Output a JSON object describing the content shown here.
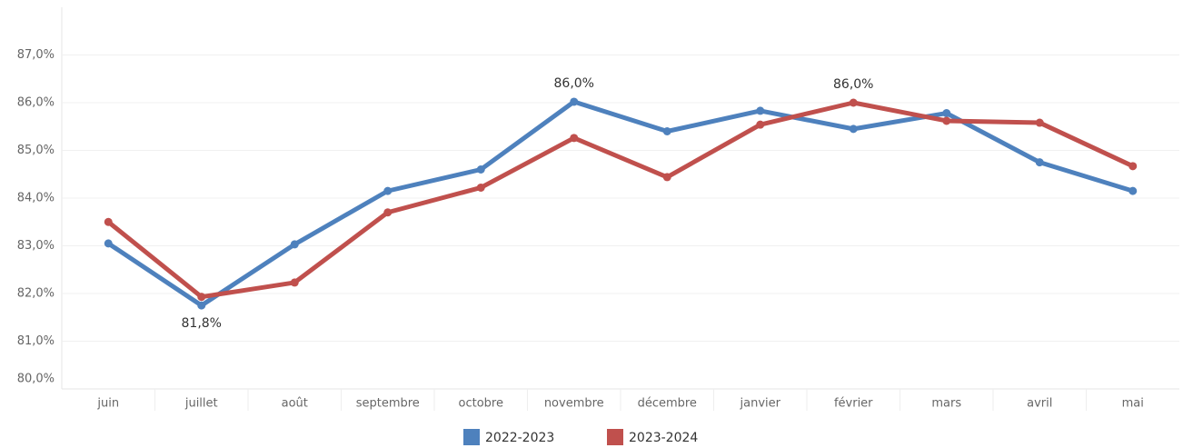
{
  "chart_data": {
    "type": "line",
    "categories": [
      "juin",
      "juillet",
      "août",
      "septembre",
      "octobre",
      "novembre",
      "décembre",
      "janvier",
      "février",
      "mars",
      "avril",
      "mai"
    ],
    "series": [
      {
        "name": "2022-2023",
        "color": "#4e81bd",
        "values": [
          83.05,
          81.75,
          83.03,
          84.15,
          84.6,
          86.02,
          85.4,
          85.83,
          85.45,
          85.78,
          84.75,
          84.15
        ],
        "value_labels": [
          null,
          "81,8%",
          null,
          null,
          null,
          "86,0%",
          null,
          null,
          null,
          null,
          null,
          null
        ]
      },
      {
        "name": "2023-2024",
        "color": "#c0504d",
        "values": [
          83.5,
          81.93,
          82.23,
          83.7,
          84.22,
          85.26,
          84.44,
          85.54,
          86.0,
          85.62,
          85.58,
          84.67
        ],
        "value_labels": [
          null,
          null,
          null,
          null,
          null,
          null,
          null,
          null,
          "86,0%",
          null,
          null,
          null
        ]
      }
    ],
    "ylim": [
      80,
      88
    ],
    "yticks": [
      {
        "value": 80,
        "label": "80,0%"
      },
      {
        "value": 81,
        "label": "81,0%"
      },
      {
        "value": 82,
        "label": "82,0%"
      },
      {
        "value": 83,
        "label": "83,0%"
      },
      {
        "value": 84,
        "label": "84,0%"
      },
      {
        "value": 85,
        "label": "85,0%"
      },
      {
        "value": 86,
        "label": "86,0%"
      },
      {
        "value": 87,
        "label": "87,0%"
      }
    ],
    "grid": true
  }
}
